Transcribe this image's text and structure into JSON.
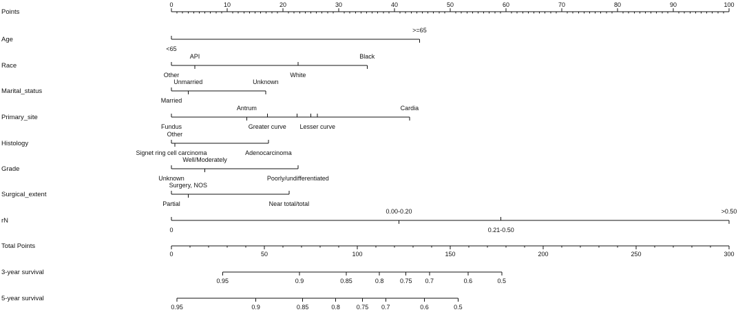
{
  "chart_data": {
    "type": "nomogram",
    "axes": [
      {
        "name": "Points",
        "kind": "scale",
        "min": 0,
        "max": 100,
        "major_ticks": [
          0,
          10,
          20,
          30,
          40,
          50,
          60,
          70,
          80,
          90,
          100
        ],
        "minor_step": 1
      },
      {
        "name": "Age",
        "kind": "var",
        "levels": [
          {
            "label": "<65",
            "points": 0,
            "side": "below"
          },
          {
            "label": ">=65",
            "points": 44.5,
            "side": "above"
          }
        ]
      },
      {
        "name": "Race",
        "kind": "var",
        "levels": [
          {
            "label": "Other",
            "points": 0,
            "side": "below"
          },
          {
            "label": "API",
            "points": 4.2,
            "side": "above"
          },
          {
            "label": "White",
            "points": 22.7,
            "side": "below"
          },
          {
            "label": "Black",
            "points": 35.1,
            "side": "above"
          }
        ]
      },
      {
        "name": "Marital_status",
        "kind": "var",
        "levels": [
          {
            "label": "Married",
            "points": 0,
            "side": "below"
          },
          {
            "label": "Unmarried",
            "points": 3.0,
            "side": "above"
          },
          {
            "label": "Unknown",
            "points": 16.9,
            "side": "above"
          }
        ]
      },
      {
        "name": "Primary_site",
        "kind": "var",
        "levels": [
          {
            "label": "Fundus",
            "points": 0,
            "side": "below"
          },
          {
            "label": "Antrum",
            "points": 13.5,
            "side": "above"
          },
          {
            "label": "Greater curve",
            "points": 17.2,
            "side": "below"
          },
          {
            "label": "",
            "points": 22.5,
            "side": "none"
          },
          {
            "label": "",
            "points": 25.0,
            "side": "none"
          },
          {
            "label": "Lesser curve",
            "points": 26.2,
            "side": "below"
          },
          {
            "label": "Cardia",
            "points": 42.7,
            "side": "above"
          }
        ]
      },
      {
        "name": "Histology",
        "kind": "var",
        "levels": [
          {
            "label": "Other",
            "points": 0.6,
            "side": "above"
          },
          {
            "label": "Signet ring cell carcinoma",
            "points": 0,
            "side": "below"
          },
          {
            "label": "Adenocarcinoma",
            "points": 17.4,
            "side": "below"
          }
        ]
      },
      {
        "name": "Grade",
        "kind": "var",
        "levels": [
          {
            "label": "Unknown",
            "points": 0,
            "side": "below"
          },
          {
            "label": "Well/Moderately",
            "points": 6.0,
            "side": "above"
          },
          {
            "label": "Poorly/undifferentiated",
            "points": 22.7,
            "side": "below"
          }
        ]
      },
      {
        "name": "Surgical_extent",
        "kind": "var",
        "levels": [
          {
            "label": "Partial",
            "points": 0,
            "side": "below"
          },
          {
            "label": "Surgery, NOS",
            "points": 3.0,
            "side": "above"
          },
          {
            "label": "Near total/total",
            "points": 21.1,
            "side": "below"
          }
        ]
      },
      {
        "name": "rN",
        "kind": "var",
        "levels": [
          {
            "label": "0",
            "points": 0,
            "side": "below"
          },
          {
            "label": "0.00-0.20",
            "points": 40.8,
            "side": "above"
          },
          {
            "label": "0.21-0.50",
            "points": 59.1,
            "side": "below"
          },
          {
            "label": ">0.50",
            "points": 100,
            "side": "above"
          }
        ]
      },
      {
        "name": "Total Points",
        "kind": "scale",
        "min": 0,
        "max": 300,
        "major_ticks": [
          0,
          50,
          100,
          150,
          200,
          250,
          300
        ],
        "minor_step": 10
      },
      {
        "name": "3-year survival",
        "kind": "prob",
        "ticks": [
          {
            "label": "0.95",
            "total": 27.5
          },
          {
            "label": "0.9",
            "total": 68.9
          },
          {
            "label": "0.85",
            "total": 94.1
          },
          {
            "label": "0.8",
            "total": 111.9
          },
          {
            "label": "0.75",
            "total": 126.2
          },
          {
            "label": "0.7",
            "total": 138.8
          },
          {
            "label": "0.6",
            "total": 159.6
          },
          {
            "label": "0.5",
            "total": 177.7
          }
        ]
      },
      {
        "name": "5-year survival",
        "kind": "prob",
        "ticks": [
          {
            "label": "0.95",
            "total": 3.0
          },
          {
            "label": "0.9",
            "total": 45.4
          },
          {
            "label": "0.85",
            "total": 70.6
          },
          {
            "label": "0.8",
            "total": 88.4
          },
          {
            "label": "0.75",
            "total": 102.8
          },
          {
            "label": "0.7",
            "total": 115.3
          },
          {
            "label": "0.6",
            "total": 136.1
          },
          {
            "label": "0.5",
            "total": 154.2
          }
        ]
      }
    ]
  }
}
